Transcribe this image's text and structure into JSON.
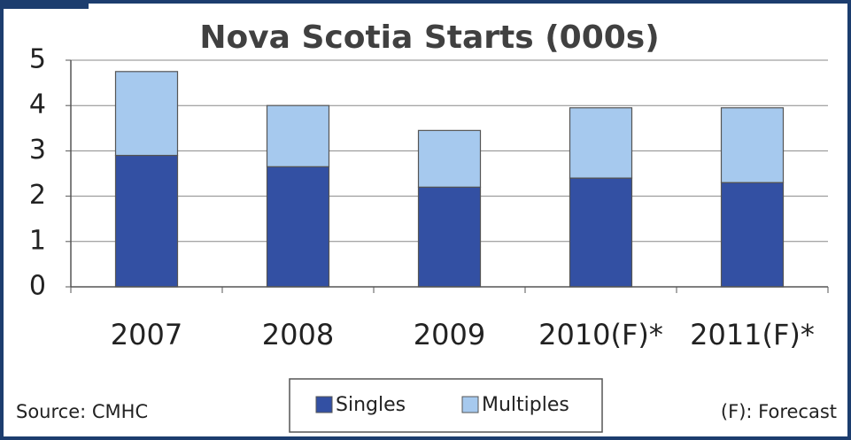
{
  "chart_data": {
    "type": "stacked_bar",
    "title": "Nova Scotia Starts (000s)",
    "categories": [
      "2007",
      "2008",
      "2009",
      "2010(F)*",
      "2011(F)*"
    ],
    "series": [
      {
        "name": "Singles",
        "color": "#3350a3",
        "values": [
          2.9,
          2.65,
          2.2,
          2.4,
          2.3
        ]
      },
      {
        "name": "Multiples",
        "color": "#a6c9ee",
        "values": [
          1.85,
          1.35,
          1.25,
          1.55,
          1.65
        ]
      }
    ],
    "ylim": [
      0,
      5
    ],
    "yticks": [
      0,
      1,
      2,
      3,
      4,
      5
    ],
    "grid": true,
    "source": "Source: CMHC",
    "note": "(F): Forecast",
    "legend": "bottom"
  }
}
